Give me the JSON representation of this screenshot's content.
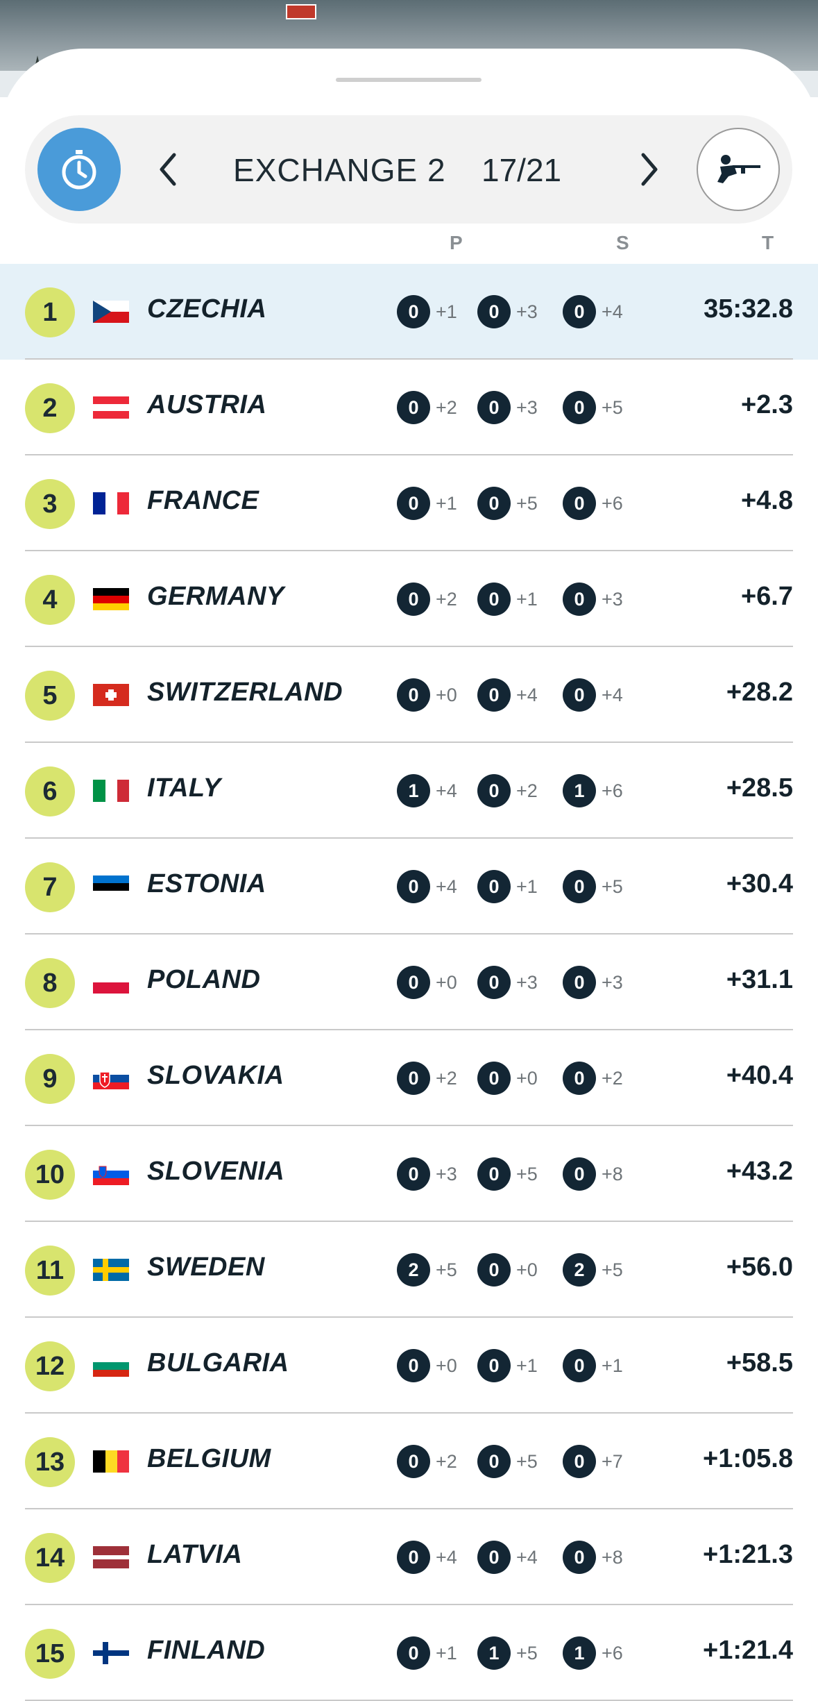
{
  "header": {
    "title": "EXCHANGE 2",
    "count": "17/21",
    "icons": {
      "timer": "stopwatch-icon",
      "prev": "chevron-left-icon",
      "next": "chevron-right-icon",
      "shooting": "shooter-icon"
    }
  },
  "columns": {
    "prone": "P",
    "standing": "S",
    "time": "T"
  },
  "colors": {
    "rank_badge": "#d8e46e",
    "highlight_row": "#e5f1f8",
    "penalty_circle": "#132634",
    "timer_button": "#4a9bd9"
  },
  "rows": [
    {
      "rank": "1",
      "country": "CZECHIA",
      "flag": "czechia",
      "p": [
        "0",
        "+1"
      ],
      "s": [
        "0",
        "+3"
      ],
      "t": [
        "0",
        "+4"
      ],
      "time": "35:32.8"
    },
    {
      "rank": "2",
      "country": "AUSTRIA",
      "flag": "austria",
      "p": [
        "0",
        "+2"
      ],
      "s": [
        "0",
        "+3"
      ],
      "t": [
        "0",
        "+5"
      ],
      "time": "+2.3"
    },
    {
      "rank": "3",
      "country": "FRANCE",
      "flag": "france",
      "p": [
        "0",
        "+1"
      ],
      "s": [
        "0",
        "+5"
      ],
      "t": [
        "0",
        "+6"
      ],
      "time": "+4.8"
    },
    {
      "rank": "4",
      "country": "GERMANY",
      "flag": "germany",
      "p": [
        "0",
        "+2"
      ],
      "s": [
        "0",
        "+1"
      ],
      "t": [
        "0",
        "+3"
      ],
      "time": "+6.7"
    },
    {
      "rank": "5",
      "country": "SWITZERLAND",
      "flag": "switzerland",
      "p": [
        "0",
        "+0"
      ],
      "s": [
        "0",
        "+4"
      ],
      "t": [
        "0",
        "+4"
      ],
      "time": "+28.2"
    },
    {
      "rank": "6",
      "country": "ITALY",
      "flag": "italy",
      "p": [
        "1",
        "+4"
      ],
      "s": [
        "0",
        "+2"
      ],
      "t": [
        "1",
        "+6"
      ],
      "time": "+28.5"
    },
    {
      "rank": "7",
      "country": "ESTONIA",
      "flag": "estonia",
      "p": [
        "0",
        "+4"
      ],
      "s": [
        "0",
        "+1"
      ],
      "t": [
        "0",
        "+5"
      ],
      "time": "+30.4"
    },
    {
      "rank": "8",
      "country": "POLAND",
      "flag": "poland",
      "p": [
        "0",
        "+0"
      ],
      "s": [
        "0",
        "+3"
      ],
      "t": [
        "0",
        "+3"
      ],
      "time": "+31.1"
    },
    {
      "rank": "9",
      "country": "SLOVAKIA",
      "flag": "slovakia",
      "p": [
        "0",
        "+2"
      ],
      "s": [
        "0",
        "+0"
      ],
      "t": [
        "0",
        "+2"
      ],
      "time": "+40.4"
    },
    {
      "rank": "10",
      "country": "SLOVENIA",
      "flag": "slovenia",
      "p": [
        "0",
        "+3"
      ],
      "s": [
        "0",
        "+5"
      ],
      "t": [
        "0",
        "+8"
      ],
      "time": "+43.2"
    },
    {
      "rank": "11",
      "country": "SWEDEN",
      "flag": "sweden",
      "p": [
        "2",
        "+5"
      ],
      "s": [
        "0",
        "+0"
      ],
      "t": [
        "2",
        "+5"
      ],
      "time": "+56.0"
    },
    {
      "rank": "12",
      "country": "BULGARIA",
      "flag": "bulgaria",
      "p": [
        "0",
        "+0"
      ],
      "s": [
        "0",
        "+1"
      ],
      "t": [
        "0",
        "+1"
      ],
      "time": "+58.5"
    },
    {
      "rank": "13",
      "country": "BELGIUM",
      "flag": "belgium",
      "p": [
        "0",
        "+2"
      ],
      "s": [
        "0",
        "+5"
      ],
      "t": [
        "0",
        "+7"
      ],
      "time": "+1:05.8"
    },
    {
      "rank": "14",
      "country": "LATVIA",
      "flag": "latvia",
      "p": [
        "0",
        "+4"
      ],
      "s": [
        "0",
        "+4"
      ],
      "t": [
        "0",
        "+8"
      ],
      "time": "+1:21.3"
    },
    {
      "rank": "15",
      "country": "FINLAND",
      "flag": "finland",
      "p": [
        "0",
        "+1"
      ],
      "s": [
        "1",
        "+5"
      ],
      "t": [
        "1",
        "+6"
      ],
      "time": "+1:21.4"
    }
  ]
}
